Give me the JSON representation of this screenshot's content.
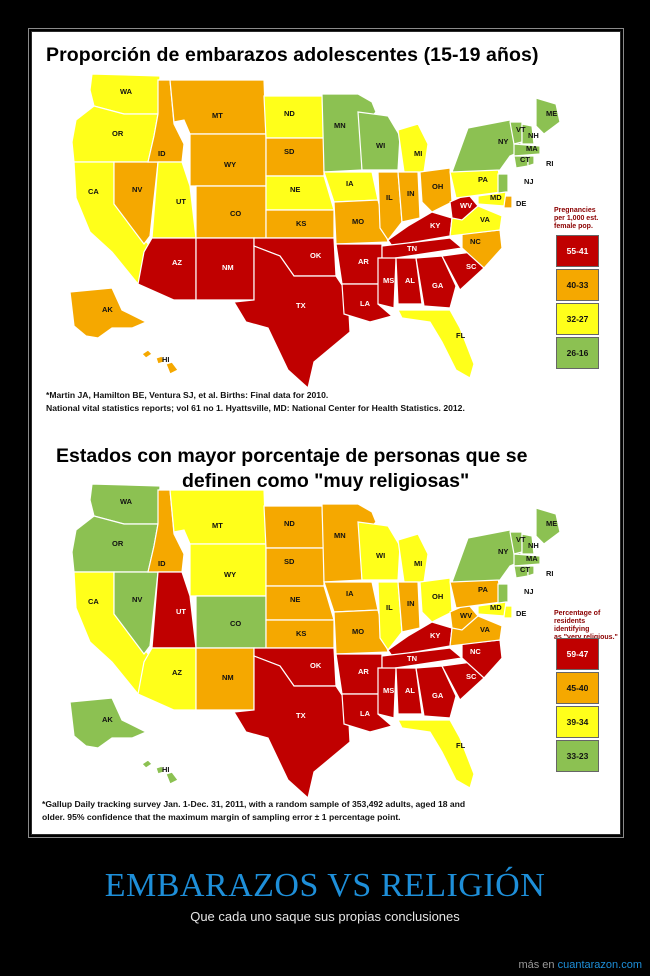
{
  "colors": {
    "red": "#c00000",
    "orange": "#f5a800",
    "yellow": "#ffff1a",
    "green": "#8cc152",
    "caption_blue": "#1e8fd9"
  },
  "map1": {
    "title": "Proporción de embarazos adolescentes (15-19 años)",
    "legend_title": [
      "Pregnancies",
      "per 1,000 est.",
      "female pop."
    ],
    "legend": [
      "55-41",
      "40-33",
      "32-27",
      "26-16"
    ],
    "footnote_line1": "*Martin JA, Hamilton BE, Ventura SJ, et al. Births: Final data for 2010.",
    "footnote_line2": "National vital statistics reports; vol 61 no 1. Hyattsville, MD: National Center for Health Statistics. 2012.",
    "states": {
      "WA": "yellow",
      "OR": "yellow",
      "CA": "yellow",
      "NV": "orange",
      "ID": "orange",
      "MT": "orange",
      "WY": "orange",
      "UT": "yellow",
      "CO": "orange",
      "AZ": "red",
      "NM": "red",
      "ND": "yellow",
      "SD": "orange",
      "NE": "yellow",
      "KS": "orange",
      "OK": "red",
      "TX": "red",
      "MN": "green",
      "IA": "yellow",
      "MO": "orange",
      "AR": "red",
      "LA": "red",
      "WI": "green",
      "IL": "orange",
      "MI": "yellow",
      "IN": "orange",
      "OH": "orange",
      "KY": "red",
      "TN": "red",
      "MS": "red",
      "AL": "red",
      "GA": "red",
      "FL": "yellow",
      "SC": "red",
      "NC": "orange",
      "VA": "yellow",
      "WV": "red",
      "PA": "yellow",
      "NY": "green",
      "ME": "green",
      "VT": "green",
      "NH": "green",
      "MA": "green",
      "CT": "green",
      "RI": "green",
      "NJ": "green",
      "DE": "orange",
      "MD": "yellow",
      "AK": "orange",
      "HI": "orange"
    }
  },
  "map2": {
    "title_line1": "Estados con mayor porcentaje de personas que se",
    "title_line2": "definen como \"muy religiosas\"",
    "legend_title": [
      "Percentage of",
      "residents identifying",
      "as \"very religious.\""
    ],
    "legend": [
      "59-47",
      "45-40",
      "39-34",
      "33-23"
    ],
    "footnote_line1": "*Gallup Daily tracking survey Jan. 1-Dec. 31, 2011, with a random sample of 353,492 adults, aged 18 and",
    "footnote_line2": "older.  95% confidence that the maximum margin of sampling error ± 1 percentage point.",
    "states": {
      "WA": "green",
      "OR": "green",
      "CA": "yellow",
      "NV": "green",
      "ID": "orange",
      "MT": "yellow",
      "WY": "yellow",
      "UT": "red",
      "CO": "green",
      "AZ": "yellow",
      "NM": "orange",
      "ND": "orange",
      "SD": "orange",
      "NE": "orange",
      "KS": "orange",
      "OK": "red",
      "TX": "red",
      "MN": "orange",
      "IA": "orange",
      "MO": "orange",
      "AR": "red",
      "LA": "red",
      "WI": "yellow",
      "IL": "yellow",
      "MI": "yellow",
      "IN": "orange",
      "OH": "yellow",
      "KY": "red",
      "TN": "red",
      "MS": "red",
      "AL": "red",
      "GA": "red",
      "FL": "yellow",
      "SC": "red",
      "NC": "red",
      "VA": "orange",
      "WV": "orange",
      "PA": "orange",
      "NY": "green",
      "ME": "green",
      "VT": "green",
      "NH": "green",
      "MA": "green",
      "CT": "green",
      "RI": "green",
      "NJ": "green",
      "DE": "yellow",
      "MD": "yellow",
      "AK": "green",
      "HI": "green"
    }
  },
  "caption": {
    "title": "EMBARAZOS VS RELIGIÓN",
    "subtitle": "Que cada uno saque sus propias conclusiones"
  },
  "credit": {
    "prefix": "más en",
    "link": "cuantarazon.com"
  }
}
